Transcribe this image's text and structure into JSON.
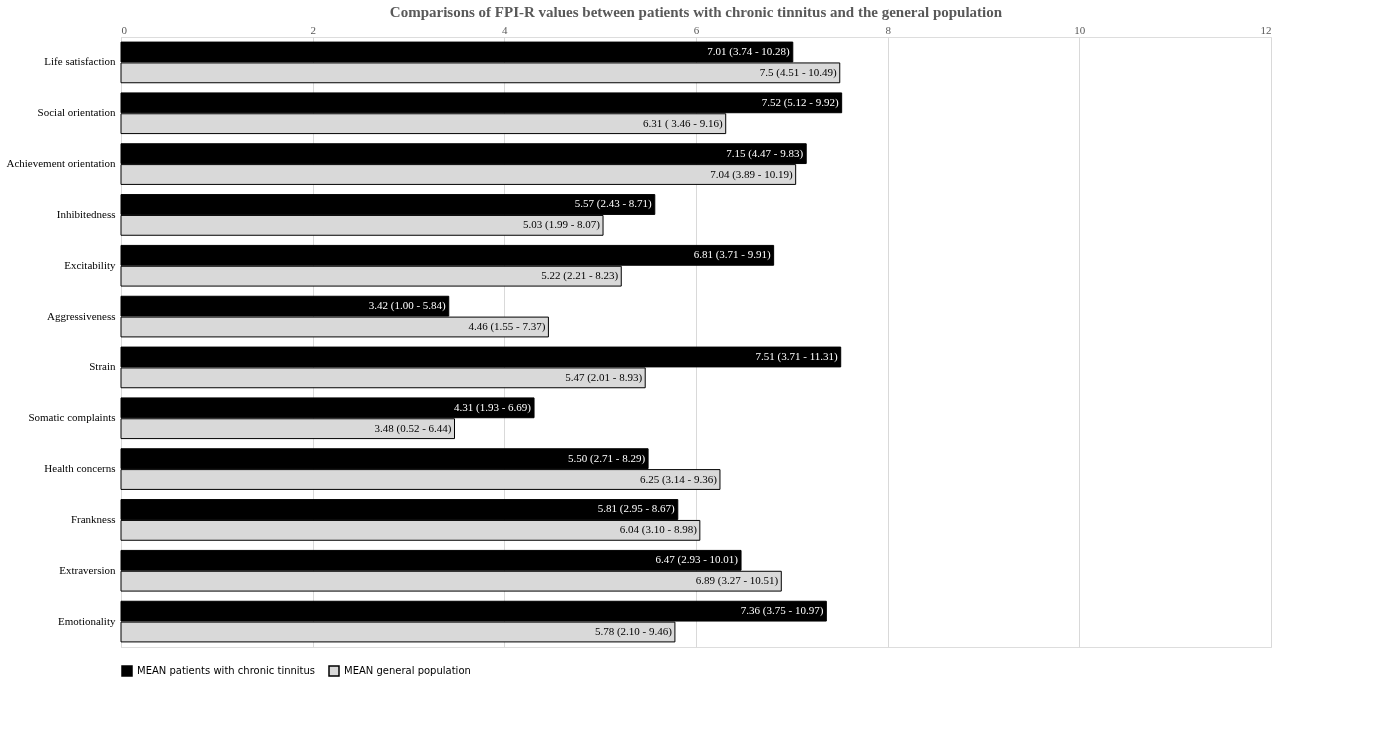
{
  "chart_data": {
    "type": "bar",
    "orientation": "horizontal",
    "title": "Comparisons of FPI-R values between patients with chronic tinnitus and the general population",
    "categories": [
      "Life satisfaction",
      "Social orientation",
      "Achievement orientation",
      "Inhibitedness",
      "Excitability",
      "Aggressiveness",
      "Strain",
      "Somatic complaints",
      "Health concerns",
      "Frankness",
      "Extraversion",
      "Emotionality"
    ],
    "series": [
      {
        "name": "MEAN patients with chronic tinnitus",
        "color": "#000000",
        "values": [
          7.01,
          7.52,
          7.15,
          5.57,
          6.81,
          3.42,
          7.51,
          4.31,
          5.5,
          5.81,
          6.47,
          7.36
        ],
        "value_labels": [
          "7.01 (3.74 - 10.28)",
          "7.52 (5.12 - 9.92)",
          "7.15 (4.47 - 9.83)",
          "5.57 (2.43 - 8.71)",
          "6.81 (3.71 - 9.91)",
          "3.42 (1.00 - 5.84)",
          "7.51 (3.71 - 11.31)",
          "4.31 (1.93 - 6.69)",
          "5.50 (2.71 - 8.29)",
          "5.81 (2.95 - 8.67)",
          "6.47 (2.93 - 10.01)",
          "7.36 (3.75 - 10.97)"
        ]
      },
      {
        "name": "MEAN general population",
        "color": "#d9d9d9",
        "values": [
          7.5,
          6.31,
          7.04,
          5.03,
          5.22,
          4.46,
          5.47,
          3.48,
          6.25,
          6.04,
          6.89,
          5.78
        ],
        "value_labels": [
          "7.5 (4.51 - 10.49)",
          "6.31 ( 3.46 - 9.16)",
          "7.04 (3.89 - 10.19)",
          "5.03 (1.99 - 8.07)",
          "5.22 (2.21 - 8.23)",
          "4.46 (1.55 - 7.37)",
          "5.47 (2.01 - 8.93)",
          "3.48 (0.52 - 6.44)",
          "6.25 (3.14 - 9.36)",
          "6.04 (3.10 - 8.98)",
          "6.89 (3.27 - 10.51)",
          "5.78 (2.10 - 9.46)"
        ]
      }
    ],
    "xlim": [
      0,
      12
    ],
    "xticks": [
      0,
      2,
      4,
      6,
      8,
      10,
      12
    ],
    "grid": "x",
    "legend": "bottom"
  }
}
